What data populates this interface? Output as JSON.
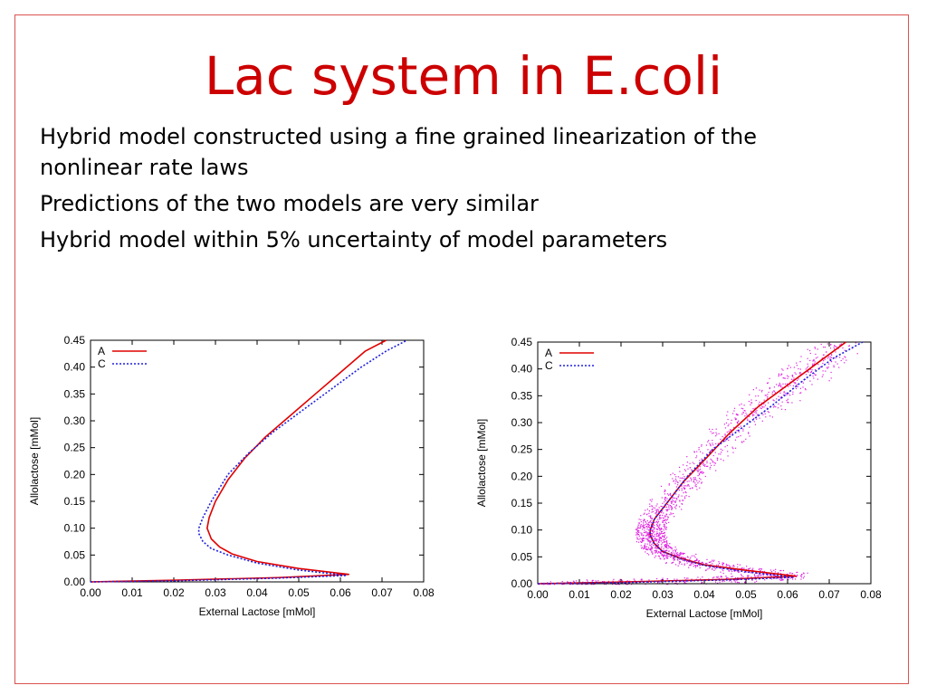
{
  "slide": {
    "title": "Lac system in E.coli",
    "bullets": [
      "Hybrid model constructed using a fine grained linearization of the nonlinear rate laws",
      "Predictions of the two models are very similar",
      "Hybrid model within 5% uncertainty of model parameters"
    ]
  },
  "colors": {
    "frame": "#d9534f",
    "title": "#cc0000",
    "seriesA": "#e00000",
    "seriesC": "#2020dd",
    "scatter": "#e020e0"
  },
  "chart_data": [
    {
      "type": "line",
      "xlabel": "External Lactose [mMol]",
      "ylabel": "Allolactose [mMol]",
      "xlim": [
        0,
        0.08
      ],
      "ylim": [
        0,
        0.45
      ],
      "xticks": [
        "0.00",
        "0.01",
        "0.02",
        "0.03",
        "0.04",
        "0.05",
        "0.06",
        "0.07",
        "0.08"
      ],
      "yticks": [
        "0.00",
        "0.05",
        "0.10",
        "0.15",
        "0.20",
        "0.25",
        "0.30",
        "0.35",
        "0.40",
        "0.45"
      ],
      "legend_position": "top-left",
      "series": [
        {
          "name": "A",
          "color": "#e00000",
          "style": "solid",
          "points": [
            [
              0,
              0
            ],
            [
              0.02,
              0.003
            ],
            [
              0.045,
              0.008
            ],
            [
              0.062,
              0.014
            ],
            [
              0.05,
              0.025
            ],
            [
              0.04,
              0.038
            ],
            [
              0.034,
              0.052
            ],
            [
              0.031,
              0.065
            ],
            [
              0.029,
              0.08
            ],
            [
              0.028,
              0.1
            ],
            [
              0.0285,
              0.12
            ],
            [
              0.03,
              0.15
            ],
            [
              0.033,
              0.19
            ],
            [
              0.037,
              0.23
            ],
            [
              0.042,
              0.27
            ],
            [
              0.048,
              0.31
            ],
            [
              0.054,
              0.35
            ],
            [
              0.06,
              0.39
            ],
            [
              0.066,
              0.43
            ],
            [
              0.071,
              0.45
            ]
          ]
        },
        {
          "name": "C",
          "color": "#2020dd",
          "style": "dotted",
          "points": [
            [
              0,
              0
            ],
            [
              0.02,
              0.002
            ],
            [
              0.045,
              0.007
            ],
            [
              0.0615,
              0.012
            ],
            [
              0.05,
              0.022
            ],
            [
              0.04,
              0.035
            ],
            [
              0.033,
              0.05
            ],
            [
              0.029,
              0.062
            ],
            [
              0.027,
              0.075
            ],
            [
              0.026,
              0.09
            ],
            [
              0.026,
              0.1
            ],
            [
              0.027,
              0.12
            ],
            [
              0.029,
              0.15
            ],
            [
              0.033,
              0.2
            ],
            [
              0.038,
              0.24
            ],
            [
              0.044,
              0.28
            ],
            [
              0.051,
              0.32
            ],
            [
              0.058,
              0.36
            ],
            [
              0.065,
              0.4
            ],
            [
              0.071,
              0.43
            ],
            [
              0.076,
              0.45
            ]
          ]
        }
      ]
    },
    {
      "type": "scatter",
      "xlabel": "External Lactose [mMol]",
      "ylabel": "Allolactose [mMol]",
      "xlim": [
        0,
        0.08
      ],
      "ylim": [
        0,
        0.45
      ],
      "xticks": [
        "0.00",
        "0.01",
        "0.02",
        "0.03",
        "0.04",
        "0.05",
        "0.06",
        "0.07",
        "0.08"
      ],
      "yticks": [
        "0.00",
        "0.05",
        "0.10",
        "0.15",
        "0.20",
        "0.25",
        "0.30",
        "0.35",
        "0.40",
        "0.45"
      ],
      "legend_position": "top-left",
      "scatter_color": "#e020e0",
      "series": [
        {
          "name": "A",
          "color": "#e00000",
          "style": "solid",
          "points": [
            [
              0,
              0
            ],
            [
              0.02,
              0.003
            ],
            [
              0.045,
              0.008
            ],
            [
              0.062,
              0.014
            ],
            [
              0.05,
              0.025
            ],
            [
              0.04,
              0.035
            ],
            [
              0.034,
              0.048
            ],
            [
              0.03,
              0.06
            ],
            [
              0.028,
              0.075
            ],
            [
              0.027,
              0.09
            ],
            [
              0.027,
              0.1
            ],
            [
              0.028,
              0.12
            ],
            [
              0.031,
              0.15
            ],
            [
              0.035,
              0.19
            ],
            [
              0.04,
              0.23
            ],
            [
              0.046,
              0.28
            ],
            [
              0.053,
              0.33
            ],
            [
              0.06,
              0.37
            ],
            [
              0.067,
              0.41
            ],
            [
              0.074,
              0.45
            ]
          ]
        },
        {
          "name": "C",
          "color": "#2020dd",
          "style": "dotted",
          "points": [
            [
              0,
              0
            ],
            [
              0.02,
              0.002
            ],
            [
              0.045,
              0.007
            ],
            [
              0.0615,
              0.012
            ],
            [
              0.05,
              0.022
            ],
            [
              0.04,
              0.034
            ],
            [
              0.034,
              0.047
            ],
            [
              0.03,
              0.06
            ],
            [
              0.028,
              0.074
            ],
            [
              0.027,
              0.09
            ],
            [
              0.027,
              0.1
            ],
            [
              0.028,
              0.12
            ],
            [
              0.031,
              0.15
            ],
            [
              0.036,
              0.2
            ],
            [
              0.042,
              0.25
            ],
            [
              0.049,
              0.29
            ],
            [
              0.056,
              0.33
            ],
            [
              0.064,
              0.38
            ],
            [
              0.071,
              0.42
            ],
            [
              0.078,
              0.45
            ]
          ]
        }
      ]
    }
  ]
}
